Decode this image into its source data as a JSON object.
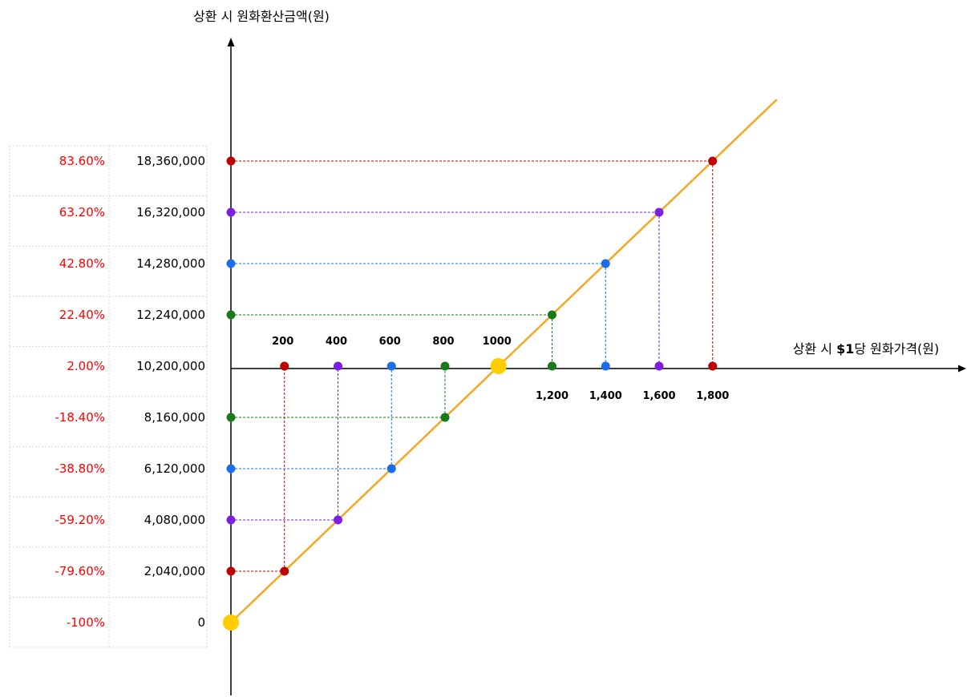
{
  "chart_data": {
    "type": "line",
    "ylabel": "상환 시 원화환산금액(원)",
    "xlabel_prefix": "상환 시 ",
    "xlabel_bold": "$1",
    "xlabel_suffix": "당 원화가격(원)",
    "xlim": [
      0,
      2000
    ],
    "ylim": [
      0,
      18360000
    ],
    "x_ticks_above": [
      "200",
      "400",
      "600",
      "800",
      "1000"
    ],
    "x_ticks_below": [
      "1,200",
      "1,400",
      "1,600",
      "1,800"
    ],
    "y_ticks": [
      "18,360,000",
      "16,320,000",
      "14,280,000",
      "12,240,000",
      "10,200,000",
      "8,160,000",
      "6,120,000",
      "4,080,000",
      "2,040,000",
      "0"
    ],
    "y_returns": [
      "83.60%",
      "63.20%",
      "42.80%",
      "22.40%",
      "2.00%",
      "-18.40%",
      "-38.80%",
      "-59.20%",
      "-79.60%",
      "-100%"
    ],
    "line": {
      "name": "",
      "color": "#f5a623",
      "x": [
        0,
        1000,
        2040
      ],
      "y": [
        0,
        10200000,
        20808000
      ]
    },
    "reference_points": [
      {
        "x": 0,
        "y": 0
      },
      {
        "x": 1000,
        "y": 10200000
      }
    ],
    "points": [
      {
        "x": 200,
        "y": 2040000,
        "color": "#c00000"
      },
      {
        "x": 400,
        "y": 4080000,
        "color": "#7b1fe0"
      },
      {
        "x": 600,
        "y": 6120000,
        "color": "#1a6fe8"
      },
      {
        "x": 800,
        "y": 8160000,
        "color": "#1a7a1a"
      },
      {
        "x": 1200,
        "y": 12240000,
        "color": "#1a7a1a"
      },
      {
        "x": 1400,
        "y": 14280000,
        "color": "#1a6fe8"
      },
      {
        "x": 1600,
        "y": 16320000,
        "color": "#7b1fe0"
      },
      {
        "x": 1800,
        "y": 18360000,
        "color": "#c00000"
      }
    ],
    "grid": false,
    "legend": "none"
  }
}
